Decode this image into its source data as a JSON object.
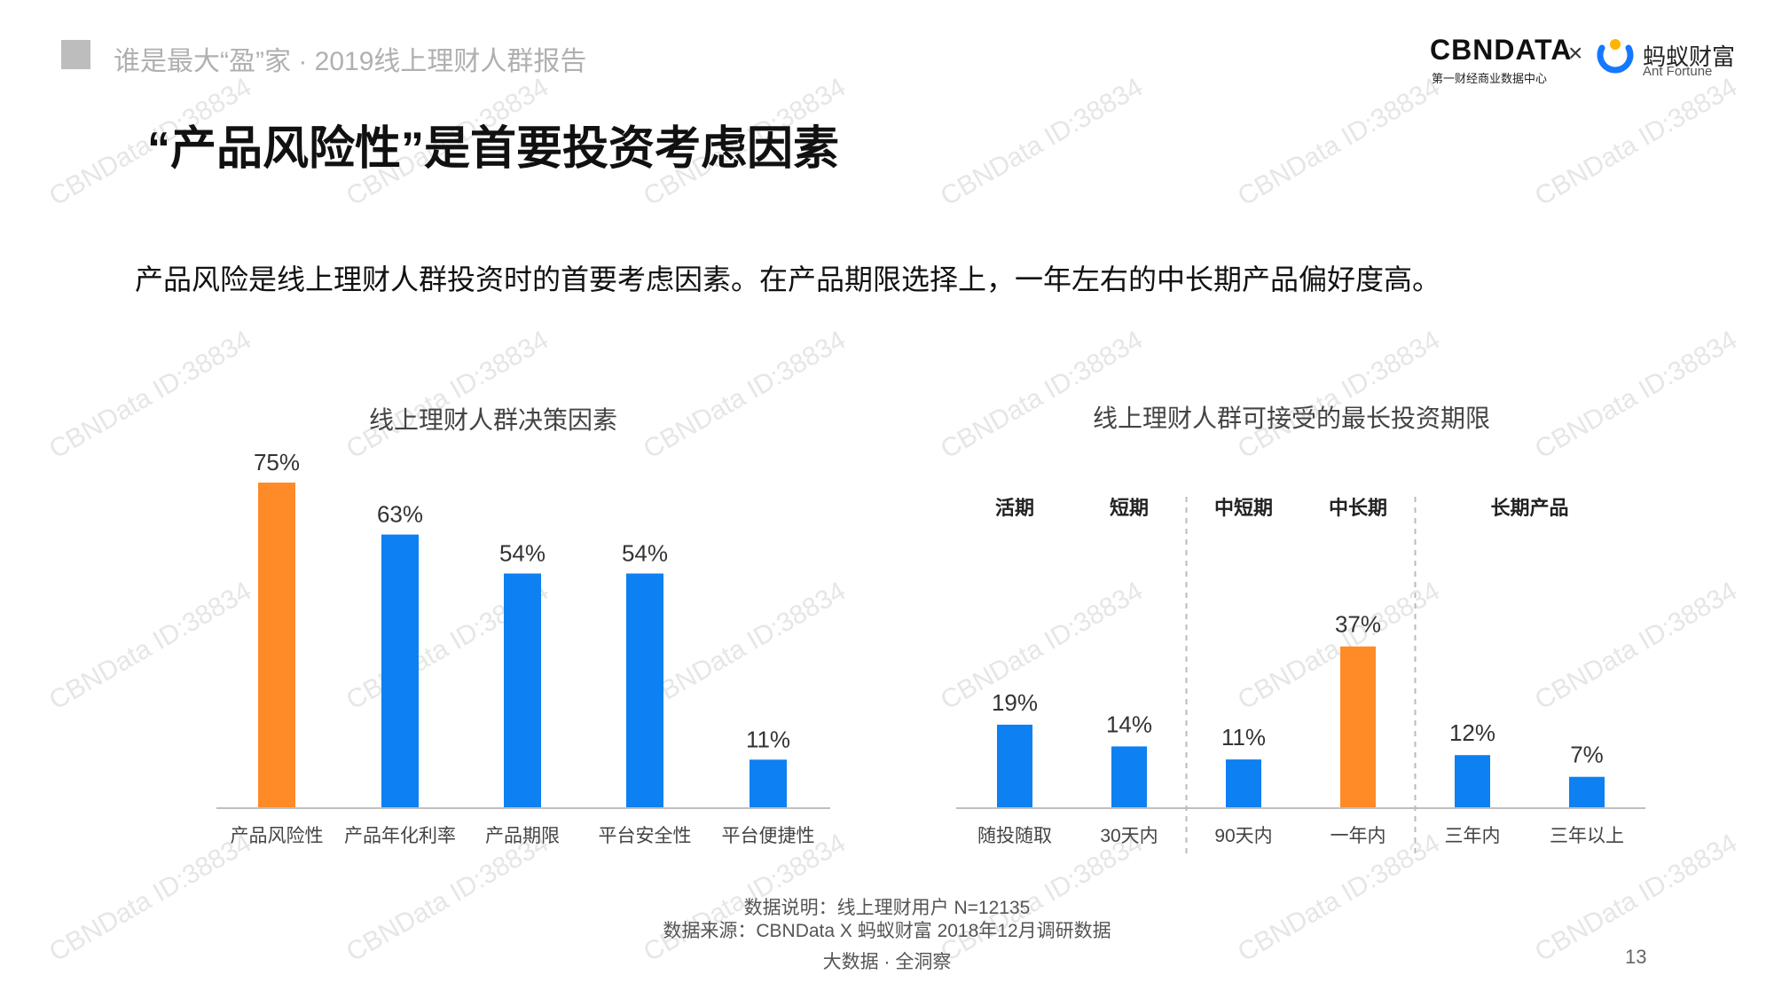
{
  "header": {
    "report_title": "谁是最大“盈”家 · 2019线上理财人群报告",
    "logo_cbn": "CBNDATA",
    "logo_cbn_sub": "第一财经商业数据中心",
    "logo_times": "×",
    "logo_ant_cn": "蚂蚁财富",
    "logo_ant_en": "Ant Fortune"
  },
  "watermark": "CBNData ID:38834",
  "main": {
    "title": "“产品风险性”是首要投资考虑因素",
    "subtitle": "产品风险是线上理财人群投资时的首要考虑因素。在产品期限选择上，一年左右的中长期产品偏好度高。"
  },
  "colors": {
    "highlight": "#FF8A28",
    "bar": "#0D80F2",
    "axis": "#bfbfbf",
    "divider": "#bbbbbb"
  },
  "chart_data": [
    {
      "type": "bar",
      "title": "线上理财人群决策因素",
      "categories": [
        "产品风险性",
        "产品年化利率",
        "产品期限",
        "平台安全性",
        "平台便捷性"
      ],
      "values": [
        75,
        63,
        54,
        54,
        11
      ],
      "value_labels": [
        "75%",
        "63%",
        "54%",
        "54%",
        "11%"
      ],
      "highlight_index": 0,
      "ylim": [
        0,
        100
      ]
    },
    {
      "type": "bar",
      "title": "线上理财人群可接受的最长投资期限",
      "categories": [
        "随投随取",
        "30天内",
        "90天内",
        "一年内",
        "三年内",
        "三年以上"
      ],
      "values": [
        19,
        14,
        11,
        37,
        12,
        7
      ],
      "value_labels": [
        "19%",
        "14%",
        "11%",
        "37%",
        "12%",
        "7%"
      ],
      "highlight_index": 3,
      "groups": [
        {
          "label": "活期",
          "start": 0,
          "end": 0
        },
        {
          "label": "短期",
          "start": 1,
          "end": 1
        },
        {
          "label": "中短期",
          "start": 2,
          "end": 2
        },
        {
          "label": "中长期",
          "start": 3,
          "end": 3
        },
        {
          "label": "长期产品",
          "start": 4,
          "end": 5
        }
      ],
      "dividers_after": [
        1,
        3
      ],
      "ylim": [
        0,
        100
      ]
    }
  ],
  "footer": {
    "note_line1": "数据说明：线上理财用户 N=12135",
    "note_line2": "数据来源：CBNData X 蚂蚁财富 2018年12月调研数据",
    "brand": "大数据 · 全洞察",
    "page_number": "13"
  }
}
